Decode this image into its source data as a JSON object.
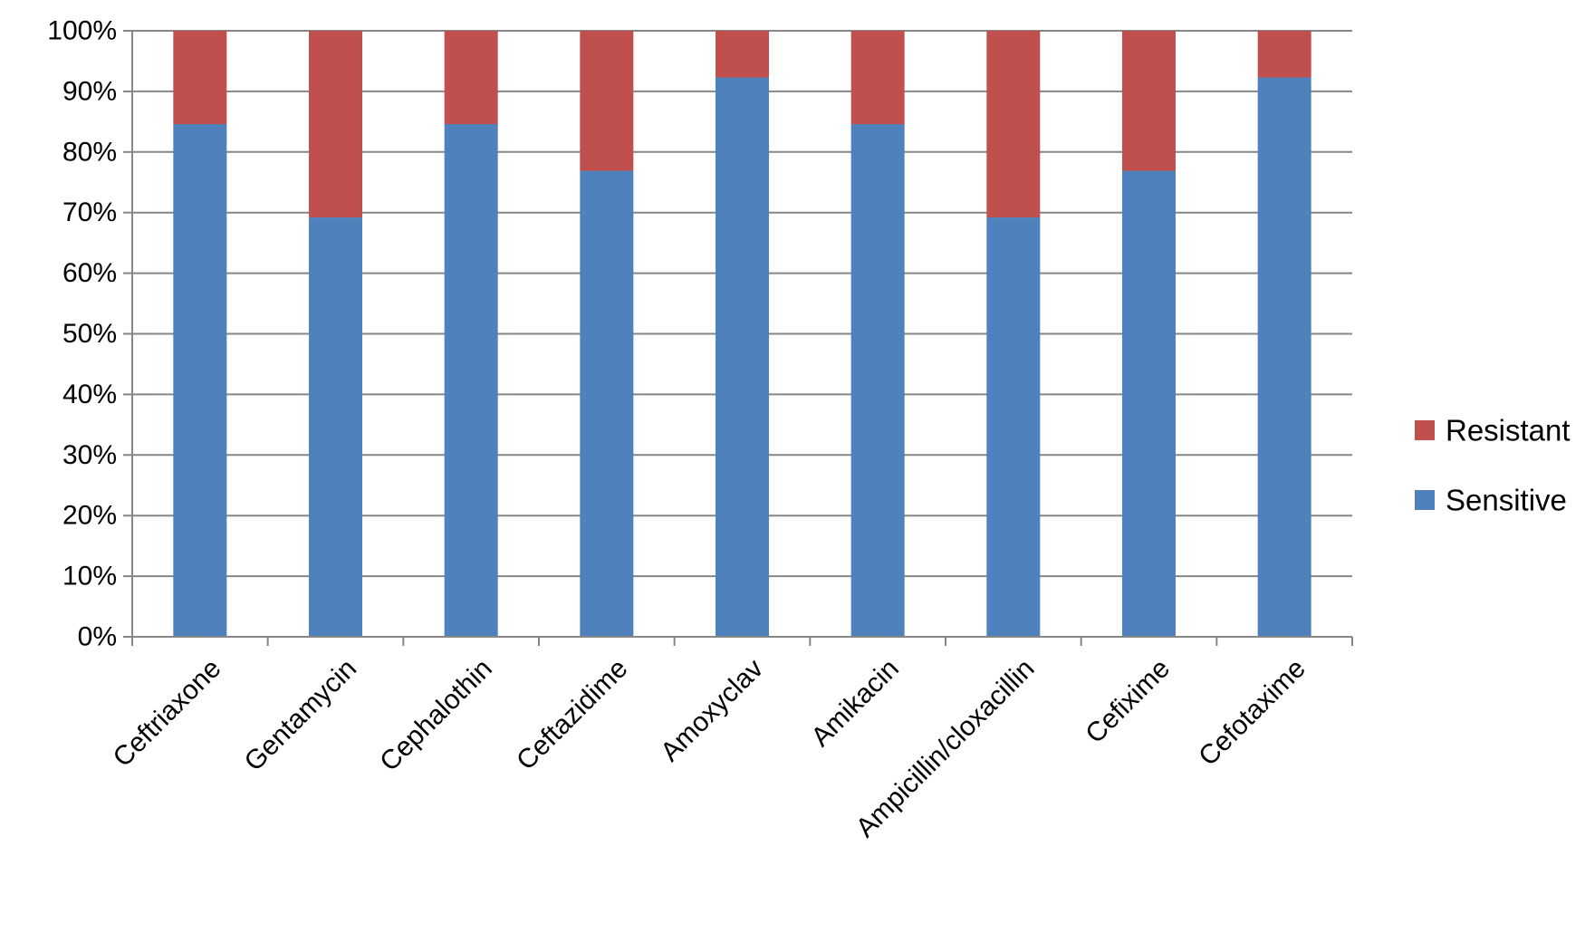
{
  "chart_data": {
    "type": "bar",
    "stacked": true,
    "percent_stacked": true,
    "title": "",
    "xlabel": "",
    "ylabel": "",
    "categories": [
      "Ceftriaxone",
      "Gentamycin",
      "Cephalothin",
      "Ceftazidime",
      "Amoxyclav",
      "Amikacin",
      "Ampicillin/cloxacillin",
      "Cefixime",
      "Cefotaxime"
    ],
    "series": [
      {
        "name": "Sensitive",
        "color": "#4F81BD",
        "values": [
          84.6,
          69.2,
          84.6,
          76.9,
          92.3,
          84.6,
          69.2,
          76.9,
          92.3
        ]
      },
      {
        "name": "Resistant",
        "color": "#C0504D",
        "values": [
          15.4,
          30.8,
          15.4,
          23.1,
          7.7,
          15.4,
          30.8,
          23.1,
          7.7
        ]
      }
    ],
    "ylim": [
      0,
      100
    ],
    "yticks": [
      "0%",
      "10%",
      "20%",
      "30%",
      "40%",
      "50%",
      "60%",
      "70%",
      "80%",
      "90%",
      "100%"
    ],
    "grid": true,
    "legend": {
      "placement": "right",
      "entries": [
        "Resistant",
        "Sensitive"
      ]
    },
    "colors": {
      "gridline": "#868686",
      "axis": "#868686"
    }
  }
}
